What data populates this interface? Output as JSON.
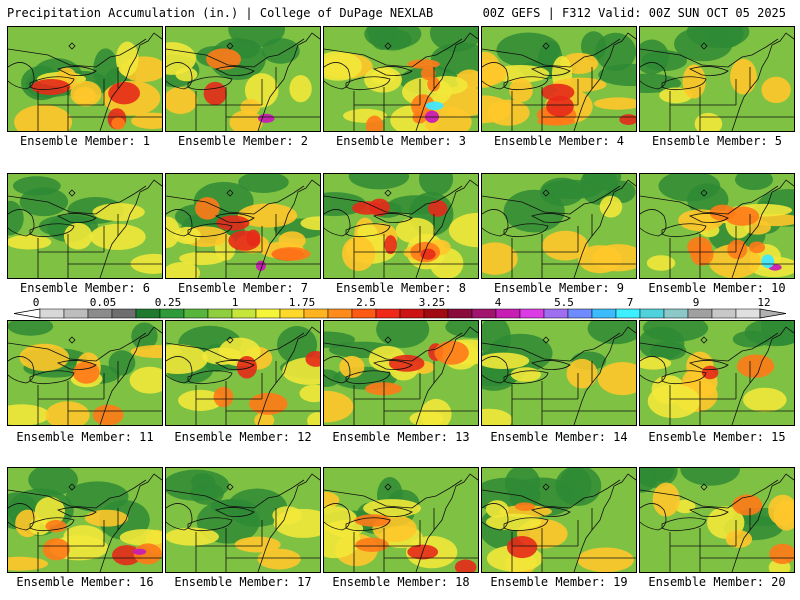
{
  "header": {
    "title": "Precipitation Accumulation (in.) | College of DuPage NEXLAB",
    "run_info": "00Z GEFS | F312 Valid: 00Z SUN OCT 05 2025"
  },
  "panels": [
    {
      "label": "Ensemble Member: 1",
      "heavy": 2,
      "extreme": 0
    },
    {
      "label": "Ensemble Member: 2",
      "heavy": 1,
      "extreme": 1
    },
    {
      "label": "Ensemble Member: 3",
      "heavy": 3,
      "extreme": 2
    },
    {
      "label": "Ensemble Member: 4",
      "heavy": 3,
      "extreme": 0
    },
    {
      "label": "Ensemble Member: 5",
      "heavy": 0,
      "extreme": 0
    },
    {
      "label": "Ensemble Member: 6",
      "heavy": 0,
      "extreme": 0
    },
    {
      "label": "Ensemble Member: 7",
      "heavy": 3,
      "extreme": 1
    },
    {
      "label": "Ensemble Member: 8",
      "heavy": 3,
      "extreme": 0
    },
    {
      "label": "Ensemble Member: 9",
      "heavy": 0,
      "extreme": 0
    },
    {
      "label": "Ensemble Member: 10",
      "heavy": 3,
      "extreme": 2
    },
    {
      "label": "Ensemble Member: 11",
      "heavy": 1,
      "extreme": 0
    },
    {
      "label": "Ensemble Member: 12",
      "heavy": 2,
      "extreme": 0
    },
    {
      "label": "Ensemble Member: 13",
      "heavy": 2,
      "extreme": 0
    },
    {
      "label": "Ensemble Member: 14",
      "heavy": 0,
      "extreme": 0
    },
    {
      "label": "Ensemble Member: 15",
      "heavy": 1,
      "extreme": 0
    },
    {
      "label": "Ensemble Member: 16",
      "heavy": 2,
      "extreme": 1
    },
    {
      "label": "Ensemble Member: 17",
      "heavy": 0,
      "extreme": 0
    },
    {
      "label": "Ensemble Member: 18",
      "heavy": 2,
      "extreme": 0
    },
    {
      "label": "Ensemble Member: 19",
      "heavy": 1,
      "extreme": 0
    },
    {
      "label": "Ensemble Member: 20",
      "heavy": 1,
      "extreme": 0
    }
  ],
  "colorbar": {
    "labels": [
      "0",
      "0.05",
      "0.25",
      "1",
      "1.75",
      "2.5",
      "3.25",
      "4",
      "5.5",
      "7",
      "9",
      "12"
    ],
    "colors": [
      "#d8d8d8",
      "#bdbdbd",
      "#8c8c8c",
      "#6e6e6e",
      "#1f7a2e",
      "#2f9a3a",
      "#58b53c",
      "#8fcf3f",
      "#c7e63c",
      "#f5f53a",
      "#ffd92a",
      "#ffb321",
      "#ff8c1a",
      "#ff5a14",
      "#f0281a",
      "#cc1414",
      "#a00a10",
      "#8b0a3c",
      "#a0146e",
      "#c81eb4",
      "#dc3ce6",
      "#a06ef0",
      "#6e8cff",
      "#3cbcff",
      "#3cf0ff",
      "#50d2dc",
      "#8cc8c8",
      "#a0a0a0",
      "#c8c8c8",
      "#e0e0e0"
    ]
  }
}
